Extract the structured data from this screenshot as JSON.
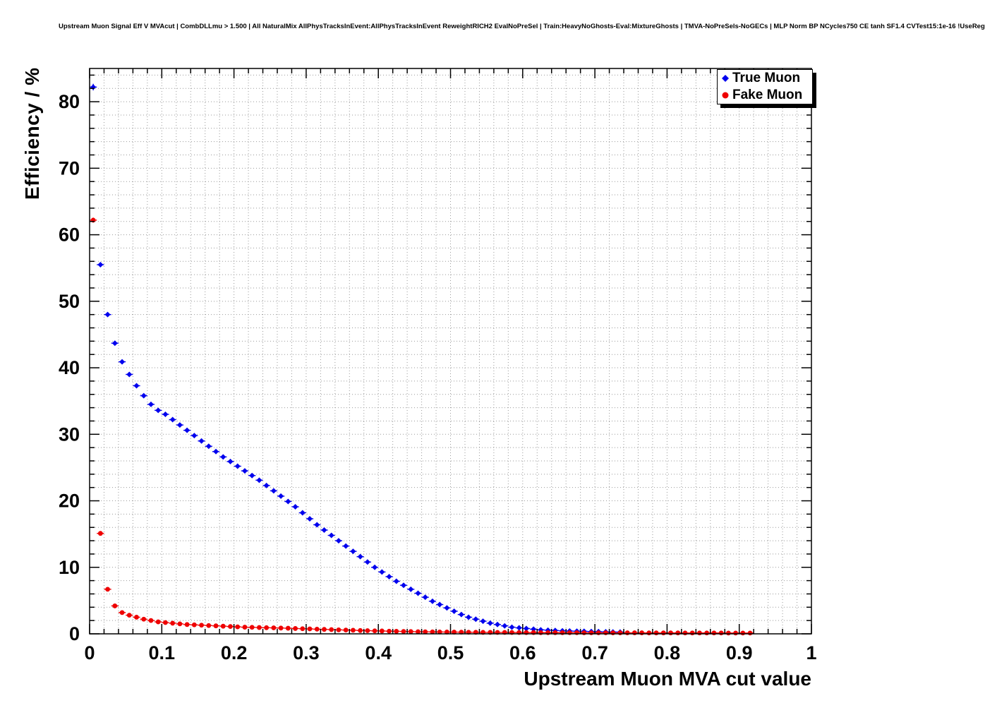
{
  "header": {
    "title": "Upstream Muon Signal Eff V MVAcut | CombDLLmu > 1.500 | All NaturalMix AllPhysTracksInEvent:AllPhysTracksInEvent ReweightRICH2 EvalNoPreSel | Train:HeavyNoGhosts-Eval:MixtureGhosts | TMVA-NoPreSels-NoGECs | MLP Norm BP NCycles750 CE tanh SF1.4 CVTest15:1e-16 !UseReg"
  },
  "axes": {
    "x_label": "Upstream Muon MVA cut value",
    "y_label": "Efficiency / %"
  },
  "legend": {
    "entries": [
      {
        "label": "True Muon",
        "color": "#0000ee",
        "marker": "diamond"
      },
      {
        "label": "Fake Muon",
        "color": "#ee0000",
        "marker": "circle"
      }
    ]
  },
  "chart_data": {
    "type": "scatter",
    "title": "Upstream Muon Signal Eff V MVAcut | CombDLLmu > 1.500 | All NaturalMix AllPhysTracksInEvent:AllPhysTracksInEvent ReweightRICH2 EvalNoPreSel | Train:HeavyNoGhosts-Eval:MixtureGhosts | TMVA-NoPreSels-NoGECs | MLP Norm BP NCycles750 CE tanh SF1.4 CVTest15:1e-16 !UseReg",
    "xlabel": "Upstream Muon MVA cut value",
    "ylabel": "Efficiency / %",
    "xlim": [
      0,
      1
    ],
    "ylim": [
      0,
      85
    ],
    "grid": "dotted-major-and-minor",
    "legend_position": "top-right",
    "x_ticks": [
      [
        0,
        "0"
      ],
      [
        0.1,
        "0.1"
      ],
      [
        0.2,
        "0.2"
      ],
      [
        0.3,
        "0.3"
      ],
      [
        0.4,
        "0.4"
      ],
      [
        0.5,
        "0.5"
      ],
      [
        0.6,
        "0.6"
      ],
      [
        0.7,
        "0.7"
      ],
      [
        0.8,
        "0.8"
      ],
      [
        0.9,
        "0.9"
      ],
      [
        1,
        "1"
      ]
    ],
    "y_ticks": [
      [
        0,
        "0"
      ],
      [
        10,
        "10"
      ],
      [
        20,
        "20"
      ],
      [
        30,
        "30"
      ],
      [
        40,
        "40"
      ],
      [
        50,
        "50"
      ],
      [
        60,
        "60"
      ],
      [
        70,
        "70"
      ],
      [
        80,
        "80"
      ]
    ],
    "series": [
      {
        "name": "True Muon",
        "color": "#0000ee",
        "marker": "diamond",
        "x": [
          0.005,
          0.015,
          0.025,
          0.035,
          0.045,
          0.055,
          0.065,
          0.075,
          0.085,
          0.095,
          0.105,
          0.115,
          0.125,
          0.135,
          0.145,
          0.155,
          0.165,
          0.175,
          0.185,
          0.195,
          0.205,
          0.215,
          0.225,
          0.235,
          0.245,
          0.255,
          0.265,
          0.275,
          0.285,
          0.295,
          0.305,
          0.315,
          0.325,
          0.335,
          0.345,
          0.355,
          0.365,
          0.375,
          0.385,
          0.395,
          0.405,
          0.415,
          0.425,
          0.435,
          0.445,
          0.455,
          0.465,
          0.475,
          0.485,
          0.495,
          0.505,
          0.515,
          0.525,
          0.535,
          0.545,
          0.555,
          0.565,
          0.575,
          0.585,
          0.595,
          0.605,
          0.615,
          0.625,
          0.635,
          0.645,
          0.655,
          0.665,
          0.675,
          0.685,
          0.695,
          0.705,
          0.715,
          0.725,
          0.735
        ],
        "y": [
          82.2,
          55.5,
          48.0,
          43.7,
          40.9,
          39.0,
          37.3,
          35.8,
          34.5,
          33.6,
          33.0,
          32.2,
          31.4,
          30.6,
          29.8,
          29.0,
          28.2,
          27.4,
          26.6,
          25.9,
          25.2,
          24.5,
          23.8,
          23.1,
          22.3,
          21.5,
          20.7,
          19.9,
          19.1,
          18.2,
          17.3,
          16.4,
          15.6,
          14.8,
          14.0,
          13.2,
          12.4,
          11.6,
          10.8,
          10.0,
          9.3,
          8.6,
          7.9,
          7.3,
          6.7,
          6.1,
          5.5,
          4.9,
          4.4,
          3.9,
          3.4,
          2.9,
          2.5,
          2.2,
          1.9,
          1.6,
          1.4,
          1.2,
          1.0,
          0.9,
          0.8,
          0.7,
          0.6,
          0.55,
          0.5,
          0.45,
          0.42,
          0.4,
          0.38,
          0.35,
          0.33,
          0.3,
          0.28,
          0.27
        ]
      },
      {
        "name": "Fake Muon",
        "color": "#ee0000",
        "marker": "circle",
        "x": [
          0.005,
          0.015,
          0.025,
          0.035,
          0.045,
          0.055,
          0.065,
          0.075,
          0.085,
          0.095,
          0.105,
          0.115,
          0.125,
          0.135,
          0.145,
          0.155,
          0.165,
          0.175,
          0.185,
          0.195,
          0.205,
          0.215,
          0.225,
          0.235,
          0.245,
          0.255,
          0.265,
          0.275,
          0.285,
          0.295,
          0.305,
          0.315,
          0.325,
          0.335,
          0.345,
          0.355,
          0.365,
          0.375,
          0.385,
          0.395,
          0.405,
          0.415,
          0.425,
          0.435,
          0.445,
          0.455,
          0.465,
          0.475,
          0.485,
          0.495,
          0.505,
          0.515,
          0.525,
          0.535,
          0.545,
          0.555,
          0.565,
          0.575,
          0.585,
          0.595,
          0.605,
          0.615,
          0.625,
          0.635,
          0.645,
          0.655,
          0.665,
          0.675,
          0.685,
          0.695,
          0.705,
          0.715,
          0.725,
          0.735,
          0.745,
          0.755,
          0.765,
          0.775,
          0.785,
          0.795,
          0.805,
          0.815,
          0.825,
          0.835,
          0.845,
          0.855,
          0.865,
          0.875,
          0.885,
          0.895,
          0.905,
          0.915
        ],
        "y": [
          62.2,
          15.1,
          6.7,
          4.2,
          3.2,
          2.8,
          2.5,
          2.2,
          2.0,
          1.8,
          1.7,
          1.6,
          1.5,
          1.4,
          1.35,
          1.3,
          1.25,
          1.2,
          1.15,
          1.1,
          1.05,
          1.0,
          0.98,
          0.95,
          0.92,
          0.9,
          0.87,
          0.84,
          0.8,
          0.77,
          0.74,
          0.7,
          0.67,
          0.64,
          0.6,
          0.57,
          0.54,
          0.5,
          0.48,
          0.45,
          0.43,
          0.4,
          0.38,
          0.36,
          0.34,
          0.32,
          0.3,
          0.29,
          0.28,
          0.27,
          0.26,
          0.25,
          0.24,
          0.23,
          0.22,
          0.22,
          0.21,
          0.21,
          0.2,
          0.2,
          0.19,
          0.19,
          0.18,
          0.18,
          0.18,
          0.17,
          0.17,
          0.17,
          0.16,
          0.16,
          0.16,
          0.16,
          0.15,
          0.15,
          0.15,
          0.15,
          0.15,
          0.14,
          0.14,
          0.14,
          0.14,
          0.14,
          0.13,
          0.13,
          0.13,
          0.13,
          0.13,
          0.13,
          0.12,
          0.12,
          0.12,
          0.12
        ]
      }
    ]
  }
}
